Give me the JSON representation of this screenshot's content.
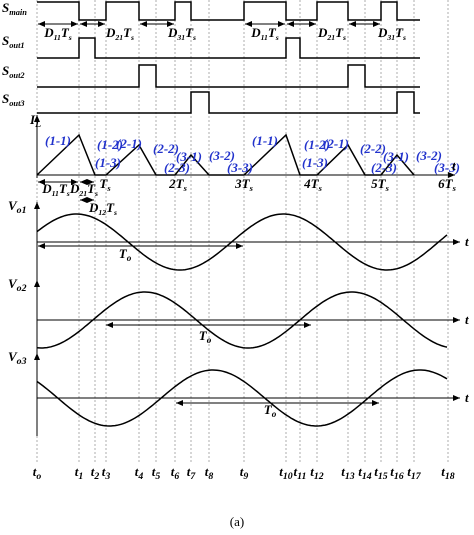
{
  "signals": [
    [
      "S",
      "main"
    ],
    [
      "S",
      "out1"
    ],
    [
      "S",
      "out2"
    ],
    [
      "S",
      "out3"
    ]
  ],
  "top_duty_labels": [
    [
      "D",
      "11",
      "T",
      "s"
    ],
    [
      "D",
      "21",
      "T",
      "s"
    ],
    [
      "D",
      "31",
      "T",
      "s"
    ],
    [
      "D",
      "11",
      "T",
      "s"
    ],
    [
      "D",
      "21",
      "T",
      "s"
    ],
    [
      "D",
      "31",
      "T",
      "s"
    ]
  ],
  "inductor": {
    "label": [
      "I",
      "L"
    ],
    "segments": [
      "(1-1)",
      "(1-2)",
      "(1-3)",
      "(2-1)",
      "(2-2)",
      "(2-3)",
      "(3-1)",
      "(3-2)",
      "(3-3)",
      "(1-1)",
      "(1-2)",
      "(1-3)",
      "(2-1)",
      "(2-2)",
      "(2-3)",
      "(3-1)",
      "(3-2)",
      "(3-3)"
    ],
    "axis": "t",
    "periods": [
      [
        "T",
        "s"
      ],
      [
        "2T",
        "s"
      ],
      [
        "3T",
        "s"
      ],
      [
        "4T",
        "s"
      ],
      [
        "5T",
        "s"
      ],
      [
        "6T",
        "s"
      ]
    ],
    "duty_labels": [
      [
        "D",
        "11",
        "T",
        "s"
      ],
      [
        "D",
        "21",
        "T",
        "s"
      ],
      [
        "D",
        "12",
        "T",
        "s"
      ]
    ]
  },
  "outputs": [
    {
      "label": [
        "V",
        "o1"
      ],
      "axis": "t",
      "period": [
        "T",
        "o"
      ]
    },
    {
      "label": [
        "V",
        "o2"
      ],
      "axis": "t",
      "period": [
        "T",
        "o"
      ]
    },
    {
      "label": [
        "V",
        "o3"
      ],
      "axis": "t",
      "period": [
        "T",
        "o"
      ]
    }
  ],
  "time_labels": [
    [
      "t",
      "o"
    ],
    [
      "t",
      "1"
    ],
    [
      "t",
      "2"
    ],
    [
      "t",
      "3"
    ],
    [
      "t",
      "4"
    ],
    [
      "t",
      "5"
    ],
    [
      "t",
      "6"
    ],
    [
      "t",
      "7"
    ],
    [
      "t",
      "8"
    ],
    [
      "t",
      "9"
    ],
    [
      "t",
      "10"
    ],
    [
      "t",
      "11"
    ],
    [
      "t",
      "12"
    ],
    [
      "t",
      "13"
    ],
    [
      "t",
      "14"
    ],
    [
      "t",
      "15"
    ],
    [
      "t",
      "16"
    ],
    [
      "t",
      "17"
    ],
    [
      "t",
      "18"
    ]
  ],
  "caption": "(a)"
}
